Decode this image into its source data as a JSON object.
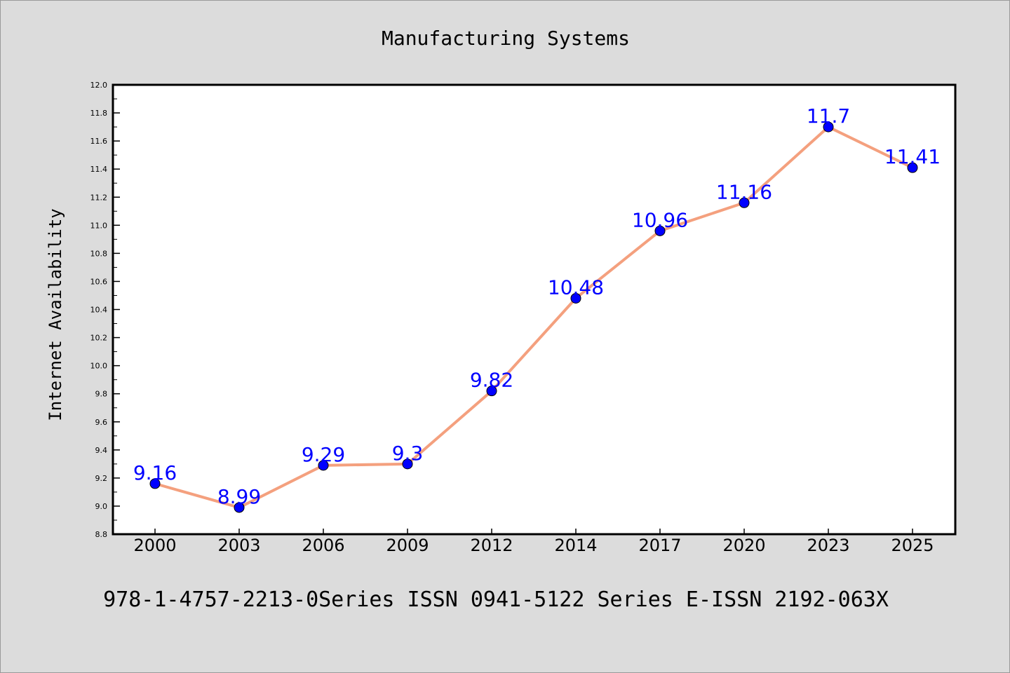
{
  "chart_data": {
    "type": "line",
    "title": "Manufacturing Systems",
    "xlabel": "",
    "ylabel": "Internet Availability",
    "categories": [
      "2000",
      "2003",
      "2006",
      "2009",
      "2012",
      "2014",
      "2017",
      "2020",
      "2023",
      "2025"
    ],
    "series": [
      {
        "values": [
          9.16,
          8.99,
          9.29,
          9.3,
          9.82,
          10.48,
          10.96,
          11.16,
          11.7,
          11.41
        ],
        "data_labels": [
          "9.16",
          "8.99",
          "9.29",
          "9.3",
          "9.82",
          "10.48",
          "10.96",
          "11.16",
          "11.7",
          "11.41"
        ],
        "line_color": "#f4a07e",
        "marker_color": "#0000ff"
      }
    ],
    "ylim": [
      8.8,
      12.0
    ],
    "yticks": [
      "8.8",
      "9.0",
      "9.2",
      "9.4",
      "9.6",
      "9.8",
      "10.0",
      "10.2",
      "10.4",
      "10.6",
      "10.8",
      "11.0",
      "11.2",
      "11.4",
      "11.6",
      "11.8",
      "12.0"
    ],
    "grid": false,
    "legend": "none",
    "label_color": "#0000ff",
    "footer": "978-1-4757-2213-0Series ISSN 0941-5122 Series E-ISSN 2192-063X"
  }
}
